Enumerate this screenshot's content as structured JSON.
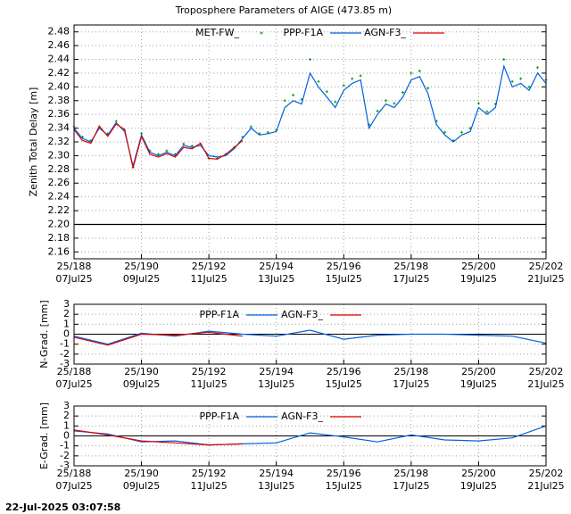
{
  "chart_data": [
    {
      "type": "line",
      "title": "Troposphere Parameters of AIGE (473.85 m)",
      "ylabel": "Zenith Total Delay [m]",
      "x": [
        188,
        188.25,
        188.5,
        188.75,
        189,
        189.25,
        189.5,
        189.75,
        190,
        190.25,
        190.5,
        190.75,
        191,
        191.25,
        191.5,
        191.75,
        192,
        192.25,
        192.5,
        192.75,
        193,
        193.25,
        193.5,
        193.75,
        194,
        194.25,
        194.5,
        194.75,
        195,
        195.25,
        195.5,
        195.75,
        196,
        196.25,
        196.5,
        196.75,
        197,
        197.25,
        197.5,
        197.75,
        198,
        198.25,
        198.5,
        198.75,
        199,
        199.25,
        199.5,
        199.75,
        200,
        200.25,
        200.5,
        200.75,
        201,
        201.25,
        201.5,
        201.75,
        202
      ],
      "series": [
        {
          "name": "MET-FW_",
          "color": "#00a000",
          "style": "points",
          "values": [
            2.342,
            2.327,
            2.322,
            2.342,
            2.332,
            2.35,
            2.337,
            2.283,
            2.332,
            2.307,
            2.302,
            2.307,
            2.302,
            2.317,
            2.314,
            2.317,
            2.296,
            2.296,
            2.302,
            2.312,
            2.327,
            2.342,
            2.332,
            2.334,
            2.337,
            2.38,
            2.388,
            2.382,
            2.44,
            2.408,
            2.393,
            2.378,
            2.402,
            2.412,
            2.416,
            2.345,
            2.365,
            2.38,
            2.376,
            2.392,
            2.42,
            2.423,
            2.398,
            2.35,
            2.334,
            2.322,
            2.334,
            2.34,
            2.376,
            2.364,
            2.375,
            2.44,
            2.408,
            2.412,
            2.4,
            2.428,
            2.41
          ]
        },
        {
          "name": "PPP-F1A",
          "color": "#0060e0",
          "style": "line",
          "values": [
            2.34,
            2.325,
            2.32,
            2.34,
            2.33,
            2.348,
            2.335,
            2.285,
            2.33,
            2.305,
            2.3,
            2.305,
            2.3,
            2.315,
            2.312,
            2.315,
            2.3,
            2.298,
            2.3,
            2.31,
            2.325,
            2.34,
            2.33,
            2.332,
            2.335,
            2.37,
            2.38,
            2.375,
            2.42,
            2.4,
            2.385,
            2.37,
            2.395,
            2.405,
            2.41,
            2.34,
            2.36,
            2.375,
            2.37,
            2.385,
            2.41,
            2.415,
            2.39,
            2.345,
            2.33,
            2.32,
            2.33,
            2.335,
            2.37,
            2.36,
            2.37,
            2.43,
            2.4,
            2.405,
            2.395,
            2.42,
            2.405
          ]
        },
        {
          "name": "AGN-F3_",
          "color": "#e00000",
          "style": "line",
          "values": [
            2.338,
            2.322,
            2.318,
            2.343,
            2.328,
            2.346,
            2.338,
            2.282,
            2.328,
            2.302,
            2.298,
            2.303,
            2.298,
            2.312,
            2.31,
            2.318,
            2.296,
            2.295,
            2.302,
            2.312,
            2.322,
            null,
            null,
            null,
            null,
            null,
            null,
            null,
            null,
            null,
            null,
            null,
            null,
            null,
            null,
            null,
            null,
            null,
            null,
            null,
            null,
            null,
            null,
            null,
            null,
            null,
            null,
            null,
            null,
            null,
            null,
            null,
            null,
            null,
            null,
            null,
            null
          ]
        },
        {
          "color": "#000000",
          "style": "line",
          "values": [
            2.2,
            2.2,
            2.2,
            2.2,
            2.2,
            2.2,
            2.2,
            2.2,
            2.2,
            2.2,
            2.2,
            2.2,
            2.2,
            2.2,
            2.2,
            2.2,
            2.2,
            2.2,
            2.2,
            2.2,
            2.2,
            2.2,
            2.2,
            2.2,
            2.2,
            2.2,
            2.2,
            2.2,
            2.2,
            2.2,
            2.2,
            2.2,
            2.2,
            2.2,
            2.2,
            2.2,
            2.2,
            2.2,
            2.2,
            2.2,
            2.2,
            2.2,
            2.2,
            2.2,
            2.2,
            2.2,
            2.2,
            2.2,
            2.2,
            2.2,
            2.2,
            2.2,
            2.2,
            2.2,
            2.2,
            2.2,
            2.2
          ]
        }
      ],
      "xlim": [
        188,
        202
      ],
      "xticks": [
        {
          "value": 188,
          "label": "25/188"
        },
        {
          "value": 190,
          "label": "25/190"
        },
        {
          "value": 192,
          "label": "25/192"
        },
        {
          "value": 194,
          "label": "25/194"
        },
        {
          "value": 196,
          "label": "25/196"
        },
        {
          "value": 198,
          "label": "25/198"
        },
        {
          "value": 200,
          "label": "25/200"
        },
        {
          "value": 202,
          "label": "25/202"
        }
      ],
      "xtick_dates": [
        "07Jul25",
        "09Jul25",
        "11Jul25",
        "13Jul25",
        "15Jul25",
        "17Jul25",
        "19Jul25",
        "21Jul25"
      ],
      "ylim": [
        2.15,
        2.49
      ],
      "yticks": [
        2.16,
        2.18,
        {
          "value": 2.2,
          "label": "2.20"
        },
        2.22,
        2.24,
        2.26,
        2.28,
        {
          "value": 2.3,
          "label": "2.30"
        },
        2.32,
        2.34,
        2.36,
        2.38,
        {
          "value": 2.4,
          "label": "2.40"
        },
        2.42,
        2.44,
        2.46,
        2.48
      ],
      "grid": true
    },
    {
      "type": "line",
      "ylabel": "N-Grad. [mm]",
      "x": [
        188,
        189,
        190,
        191,
        192,
        193,
        194,
        195,
        196,
        197,
        198,
        199,
        200,
        201,
        202
      ],
      "series": [
        {
          "name": "PPP-F1A",
          "color": "#0060e0",
          "style": "line",
          "values": [
            -0.2,
            -1.0,
            0.1,
            -0.2,
            0.3,
            0.0,
            -0.2,
            0.4,
            -0.5,
            -0.1,
            0.0,
            0.0,
            -0.1,
            -0.2,
            -0.9
          ]
        },
        {
          "name": "AGN-F3_",
          "color": "#e00000",
          "style": "line",
          "values": [
            -0.3,
            -1.1,
            0.0,
            -0.1,
            0.2,
            -0.2,
            null,
            null,
            null,
            null,
            null,
            null,
            null,
            null,
            null
          ]
        }
      ],
      "xlim": [
        188,
        202
      ],
      "xticks": [
        {
          "value": 188,
          "label": "25/188"
        },
        {
          "value": 190,
          "label": "25/190"
        },
        {
          "value": 192,
          "label": "25/192"
        },
        {
          "value": 194,
          "label": "25/194"
        },
        {
          "value": 196,
          "label": "25/196"
        },
        {
          "value": 198,
          "label": "25/198"
        },
        {
          "value": 200,
          "label": "25/200"
        },
        {
          "value": 202,
          "label": "25/202"
        }
      ],
      "xtick_dates": [
        "07Jul25",
        "09Jul25",
        "11Jul25",
        "13Jul25",
        "15Jul25",
        "17Jul25",
        "19Jul25",
        "21Jul25"
      ],
      "ylim": [
        -3,
        3
      ],
      "yticks": [
        -3,
        -2,
        -1,
        0,
        1,
        2,
        3
      ],
      "zero_line": true,
      "grid": true
    },
    {
      "type": "line",
      "ylabel": "E-Grad. [mm]",
      "x": [
        188,
        189,
        190,
        191,
        192,
        193,
        194,
        195,
        196,
        197,
        198,
        199,
        200,
        201,
        202
      ],
      "series": [
        {
          "name": "PPP-F1A",
          "color": "#0060e0",
          "style": "line",
          "values": [
            0.5,
            0.2,
            -0.6,
            -0.5,
            -0.9,
            -0.8,
            -0.7,
            0.3,
            -0.1,
            -0.6,
            0.1,
            -0.4,
            -0.5,
            -0.2,
            1.0
          ]
        },
        {
          "name": "AGN-F3_",
          "color": "#e00000",
          "style": "line",
          "values": [
            0.6,
            0.1,
            -0.5,
            -0.7,
            -0.9,
            -0.8,
            null,
            null,
            null,
            null,
            null,
            null,
            null,
            null,
            null
          ]
        }
      ],
      "xlim": [
        188,
        202
      ],
      "xticks": [
        {
          "value": 188,
          "label": "25/188"
        },
        {
          "value": 190,
          "label": "25/190"
        },
        {
          "value": 192,
          "label": "25/192"
        },
        {
          "value": 194,
          "label": "25/194"
        },
        {
          "value": 196,
          "label": "25/196"
        },
        {
          "value": 198,
          "label": "25/198"
        },
        {
          "value": 200,
          "label": "25/200"
        },
        {
          "value": 202,
          "label": "25/202"
        }
      ],
      "xtick_dates": [
        "07Jul25",
        "09Jul25",
        "11Jul25",
        "13Jul25",
        "15Jul25",
        "17Jul25",
        "19Jul25",
        "21Jul25"
      ],
      "ylim": [
        -3,
        3
      ],
      "yticks": [
        -3,
        -2,
        -1,
        0,
        1,
        2,
        3
      ],
      "zero_line": true,
      "grid": true
    }
  ],
  "footer": "22-Jul-2025 03:07:58"
}
